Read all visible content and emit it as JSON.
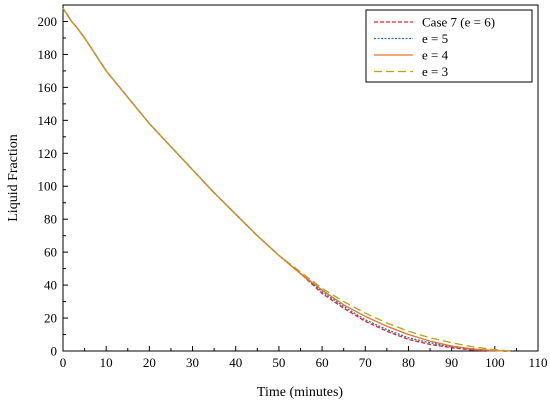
{
  "chart_data": {
    "type": "line",
    "title": "",
    "xlabel": "Time (minutes)",
    "ylabel": "Liquid Fraction",
    "xlim": [
      0,
      110
    ],
    "ylim": [
      0,
      210
    ],
    "xticks": [
      "0",
      "10",
      "20",
      "30",
      "40",
      "50",
      "60",
      "70",
      "80",
      "90",
      "100",
      "110"
    ],
    "yticks": [
      "0",
      "20",
      "40",
      "60",
      "80",
      "100",
      "120",
      "140",
      "160",
      "180",
      "200"
    ],
    "grid": false,
    "legend_position": "top-right",
    "series": [
      {
        "name": "Case 7 (e = 6)",
        "color": "#e8202a",
        "dash": "short-dash",
        "x": [
          0,
          1,
          2,
          3,
          5,
          8,
          10,
          15,
          20,
          25,
          30,
          35,
          40,
          45,
          50,
          55,
          60,
          65,
          70,
          75,
          80,
          85,
          90,
          95,
          100
        ],
        "y": [
          208,
          204,
          200,
          197,
          190,
          178,
          170,
          154,
          138,
          124,
          110,
          96,
          83,
          70,
          58,
          47,
          35,
          26,
          18,
          12,
          7,
          4,
          2,
          0.5,
          0
        ]
      },
      {
        "name": "e = 5",
        "color": "#1f6fc5",
        "dash": "dot",
        "x": [
          0,
          1,
          2,
          3,
          5,
          8,
          10,
          15,
          20,
          25,
          30,
          35,
          40,
          45,
          50,
          55,
          60,
          65,
          70,
          75,
          80,
          85,
          90,
          95,
          100
        ],
        "y": [
          208,
          204,
          200,
          197,
          190,
          178,
          170,
          154,
          138,
          124,
          110,
          96,
          83,
          70,
          58,
          47,
          36,
          27,
          19,
          13,
          8,
          5,
          2.5,
          1,
          0
        ]
      },
      {
        "name": "e = 4",
        "color": "#e8742a",
        "dash": "solid",
        "x": [
          0,
          1,
          2,
          3,
          5,
          8,
          10,
          15,
          20,
          25,
          30,
          35,
          40,
          45,
          50,
          55,
          60,
          65,
          70,
          75,
          80,
          85,
          90,
          95,
          100,
          102
        ],
        "y": [
          208,
          204,
          200,
          197,
          190,
          178,
          170,
          154,
          138,
          124,
          110,
          96,
          83,
          70,
          58,
          47,
          37,
          28,
          21,
          15,
          10,
          6,
          3,
          1.2,
          0.2,
          0
        ]
      },
      {
        "name": "e = 3",
        "color": "#b5a21a",
        "dash": "long-dash",
        "x": [
          0,
          1,
          2,
          3,
          5,
          8,
          10,
          15,
          20,
          25,
          30,
          35,
          40,
          45,
          50,
          55,
          60,
          65,
          70,
          75,
          80,
          85,
          90,
          95,
          100,
          104
        ],
        "y": [
          208,
          204,
          200,
          197,
          190,
          178,
          170,
          154,
          138,
          124,
          110,
          96,
          83,
          70,
          58,
          48,
          38,
          30,
          23,
          17,
          12,
          8,
          5,
          2.5,
          0.8,
          0
        ]
      }
    ]
  }
}
